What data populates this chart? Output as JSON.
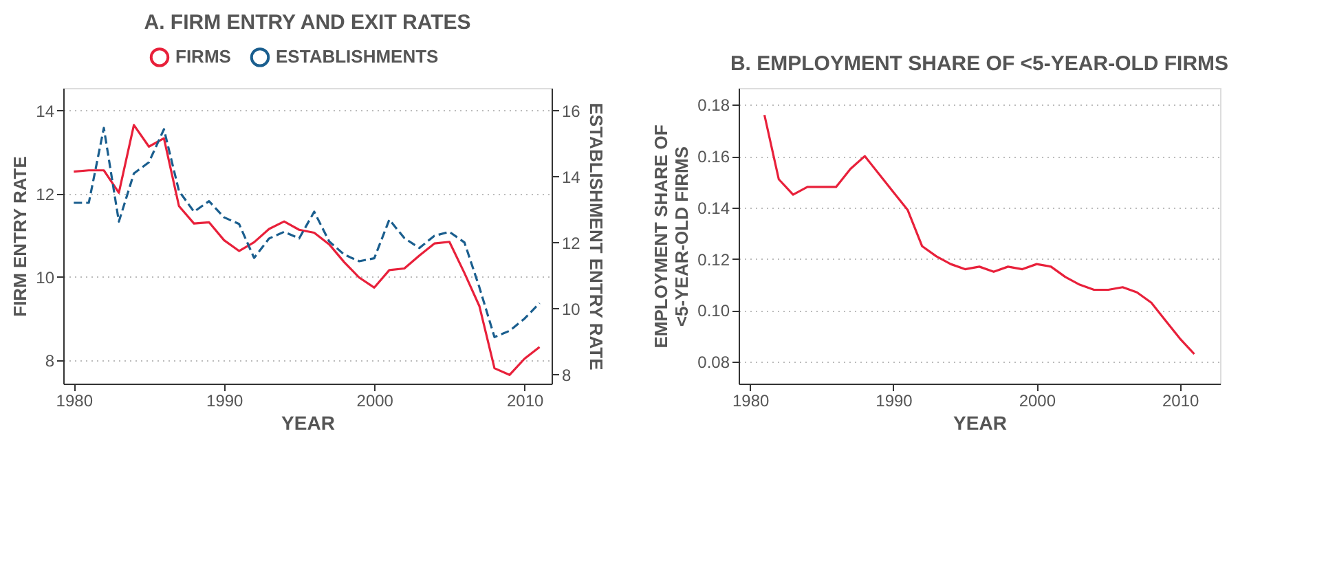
{
  "chart_data": [
    {
      "type": "line",
      "title": "A. FIRM ENTRY AND EXIT RATES",
      "xlabel": "YEAR",
      "ylabel": "FIRM ENTRY RATE",
      "y2label": "ESTABLISHMENT ENTRY RATE",
      "x": [
        1980,
        1981,
        1982,
        1983,
        1984,
        1985,
        1986,
        1987,
        1988,
        1989,
        1990,
        1991,
        1992,
        1993,
        1994,
        1995,
        1996,
        1997,
        1998,
        1999,
        2000,
        2001,
        2002,
        2003,
        2004,
        2005,
        2006,
        2007,
        2008,
        2009,
        2010,
        2011
      ],
      "series": [
        {
          "name": "FIRMS",
          "color": "#e8203a",
          "line_style": "solid",
          "values": [
            12.53,
            12.56,
            12.56,
            12.02,
            13.65,
            13.13,
            13.33,
            11.7,
            11.28,
            11.31,
            10.88,
            10.62,
            10.83,
            11.15,
            11.33,
            11.13,
            11.06,
            10.78,
            10.35,
            9.98,
            9.74,
            10.16,
            10.2,
            10.51,
            10.8,
            10.84,
            10.09,
            9.29,
            7.8,
            7.64,
            8.03,
            8.31
          ]
        },
        {
          "name": "ESTABLISHMENTS",
          "color": "#1a5e8e",
          "line_style": "dashed",
          "axis": "y2",
          "values": [
            13.2,
            13.2,
            15.47,
            12.63,
            14.09,
            14.43,
            15.43,
            13.56,
            12.93,
            13.25,
            12.76,
            12.56,
            11.53,
            12.12,
            12.32,
            12.12,
            12.93,
            12.03,
            11.63,
            11.43,
            11.52,
            12.69,
            12.13,
            11.83,
            12.2,
            12.32,
            12.0,
            10.63,
            9.13,
            9.32,
            9.69,
            10.16
          ]
        }
      ],
      "xlim": [
        1979.3,
        2011.8
      ],
      "xticks": [
        1980,
        1990,
        2000,
        2010
      ],
      "ylim": [
        7.43,
        14.54
      ],
      "yticks": [
        8,
        10,
        12,
        14
      ],
      "y2lim": [
        7.72,
        16.68
      ],
      "y2ticks": [
        8,
        10,
        12,
        14,
        16
      ],
      "grid": "y",
      "legend": "top"
    },
    {
      "type": "line",
      "title": "B. EMPLOYMENT SHARE OF <5-YEAR-OLD FIRMS",
      "xlabel": "YEAR",
      "ylabel": "EMPLOYMENT SHARE OF\n<5-YEAR-OLD FIRMS",
      "x": [
        1981,
        1982,
        1983,
        1984,
        1985,
        1986,
        1987,
        1988,
        1989,
        1990,
        1991,
        1992,
        1993,
        1994,
        1995,
        1996,
        1997,
        1998,
        1999,
        2000,
        2001,
        2002,
        2003,
        2004,
        2005,
        2006,
        2007,
        2008,
        2009,
        2010,
        2011
      ],
      "series": [
        {
          "color": "#e8203a",
          "line_style": "solid",
          "values": [
            0.176,
            0.151,
            0.145,
            0.148,
            0.148,
            0.148,
            0.155,
            0.16,
            0.153,
            0.146,
            0.139,
            0.125,
            0.121,
            0.118,
            0.116,
            0.117,
            0.115,
            0.117,
            0.116,
            0.118,
            0.117,
            0.113,
            0.11,
            0.108,
            0.108,
            0.109,
            0.107,
            0.103,
            0.096,
            0.089,
            0.083
          ]
        }
      ],
      "xlim": [
        1979.2,
        2012.8
      ],
      "xticks": [
        1980,
        1990,
        2000,
        2010
      ],
      "ylim": [
        0.0715,
        0.1865
      ],
      "yticks": [
        {
          "value": 0.08,
          "label": "0.08"
        },
        {
          "value": 0.1,
          "label": "0.10"
        },
        {
          "value": 0.12,
          "label": "0.12"
        },
        {
          "value": 0.14,
          "label": "0.14"
        },
        {
          "value": 0.16,
          "label": "0.16"
        },
        {
          "value": 0.18,
          "label": "0.18"
        }
      ],
      "grid": "y"
    }
  ]
}
